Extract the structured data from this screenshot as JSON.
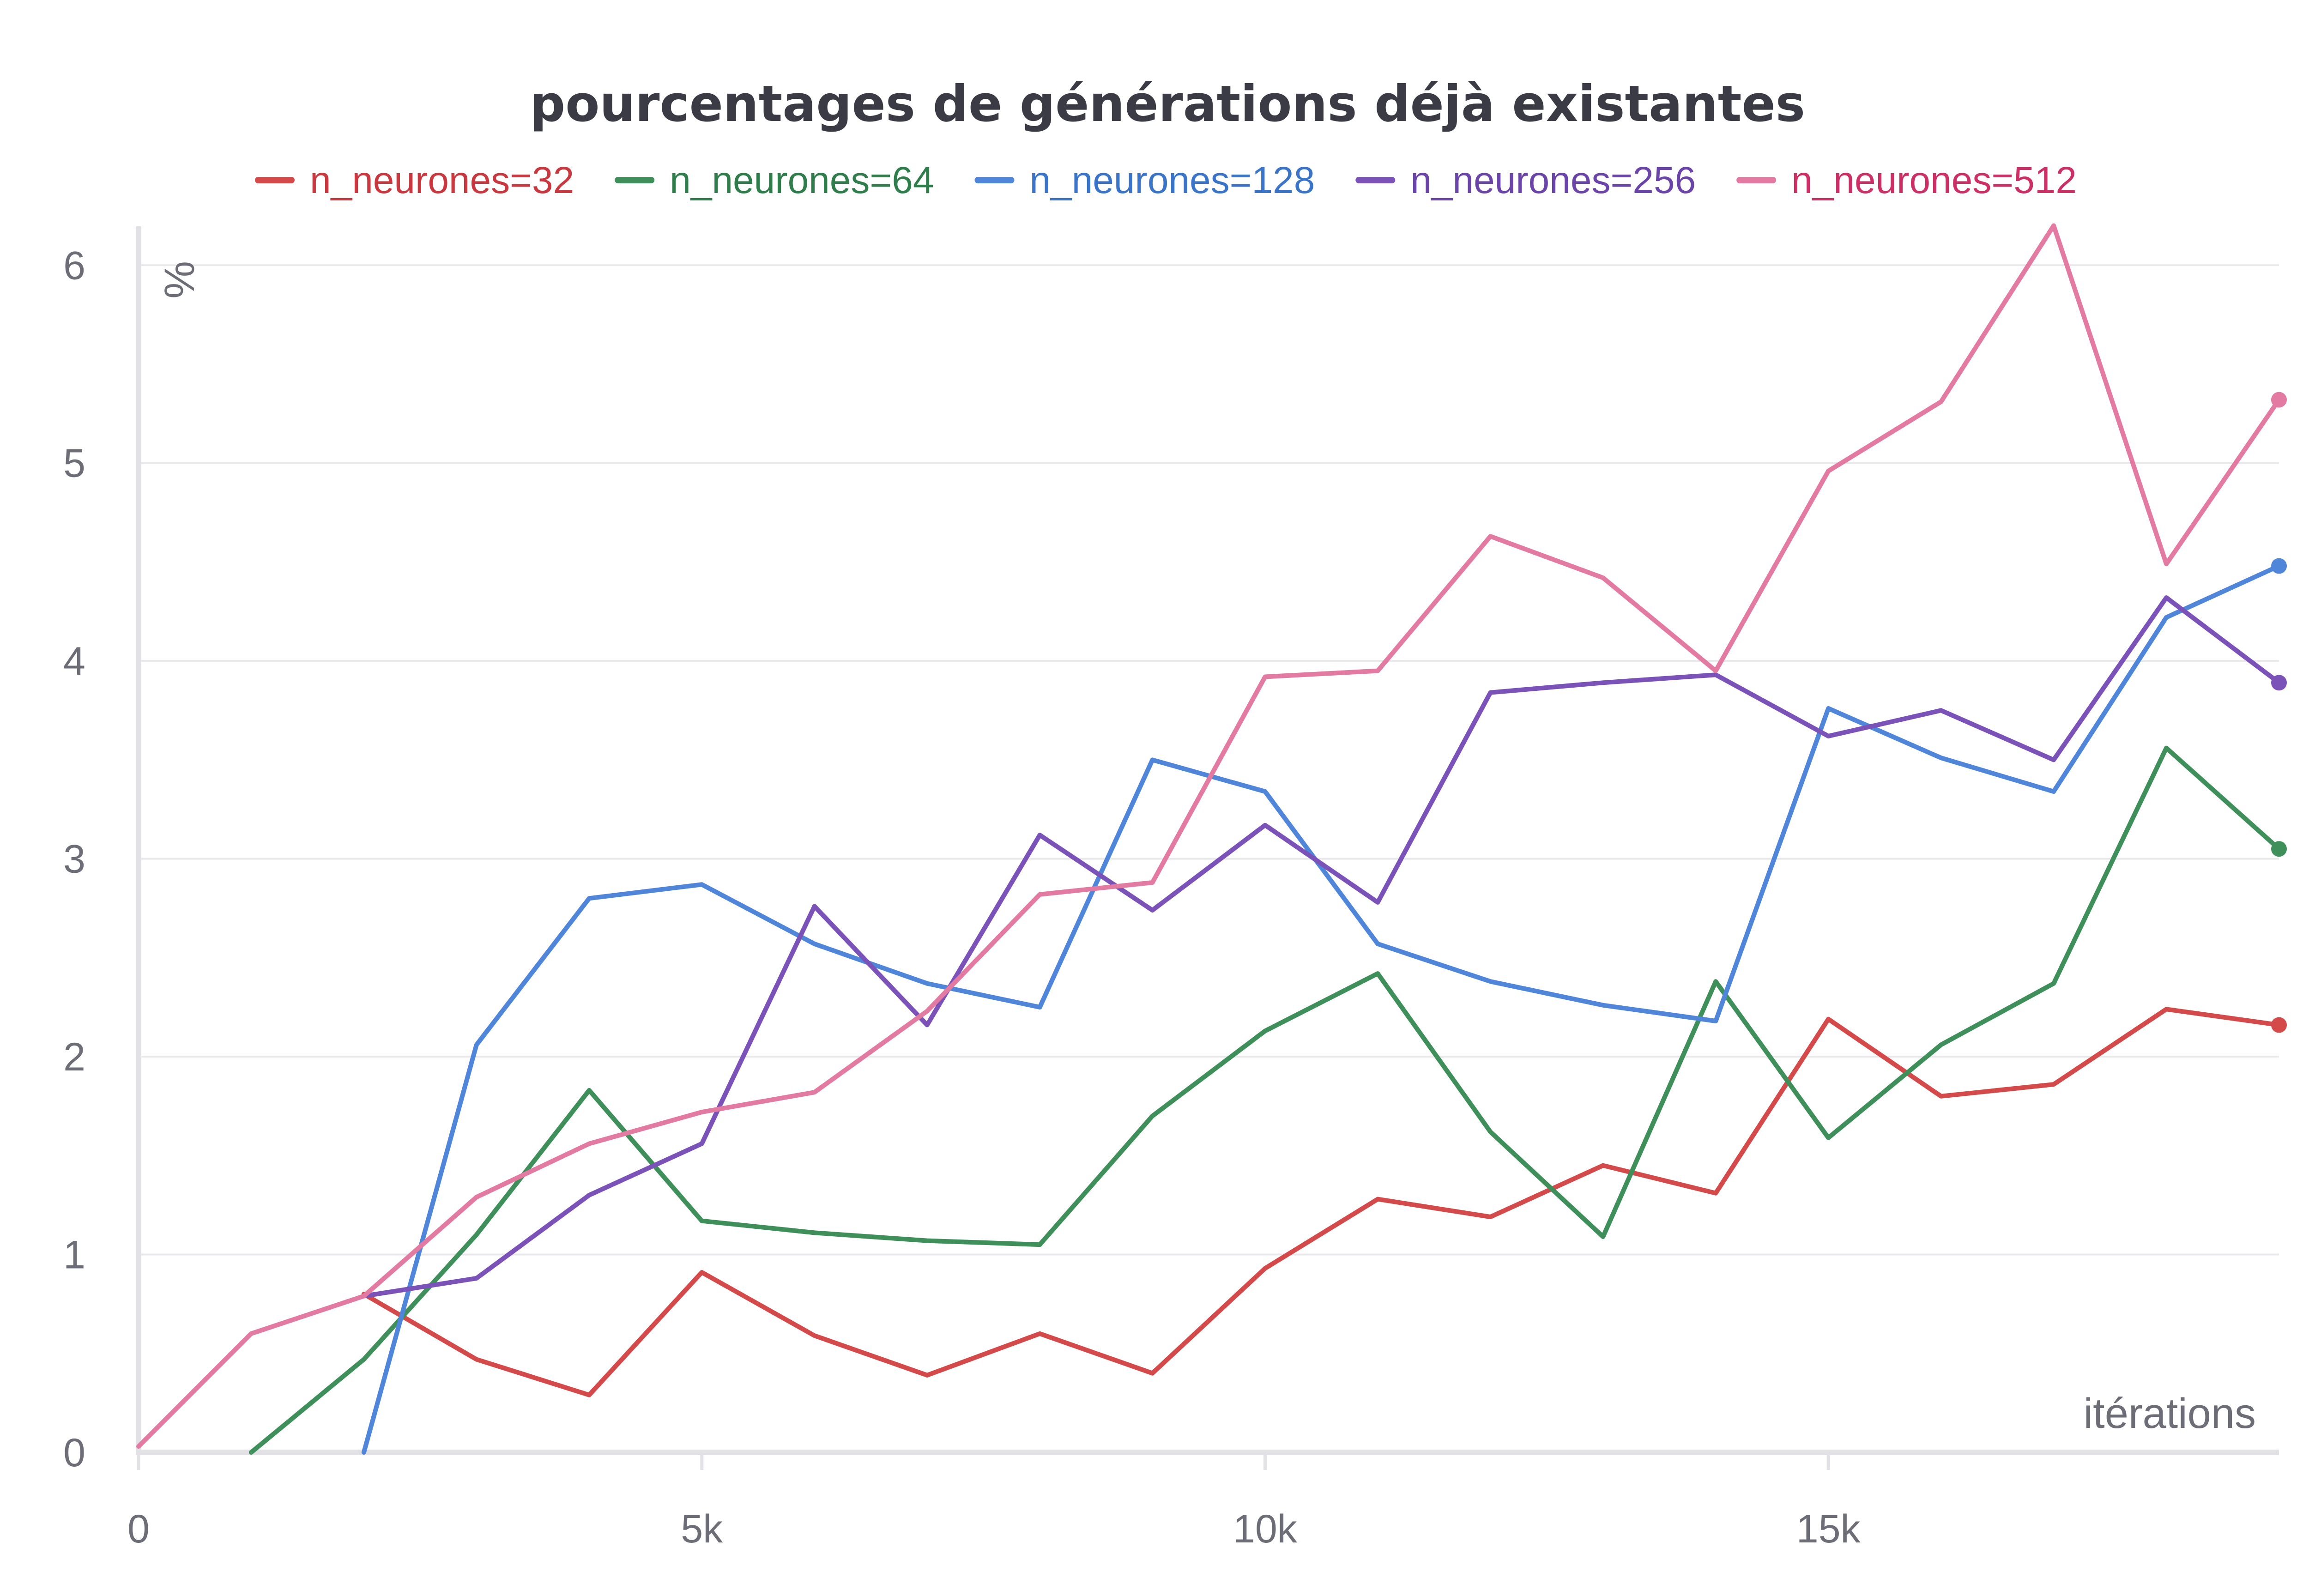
{
  "chart_data": {
    "type": "line",
    "title": "pourcentages de générations déjà existantes",
    "xlabel": "itérations",
    "ylabel": "%",
    "xlim": [
      0,
      19000
    ],
    "ylim": [
      0,
      6.15
    ],
    "x_ticks": [
      0,
      5000,
      10000,
      15000
    ],
    "x_tick_labels": [
      "0",
      "5k",
      "10k",
      "15k"
    ],
    "y_ticks": [
      0,
      1,
      2,
      3,
      4,
      5,
      6
    ],
    "y_tick_labels": [
      "0",
      "1",
      "2",
      "3",
      "4",
      "5",
      "6"
    ],
    "grid": true,
    "legend": "top",
    "series": [
      {
        "name": "n_neurones=32",
        "color": "#d44a4a",
        "x": [
          2000,
          3000,
          4000,
          5000,
          6000,
          7000,
          8000,
          9000,
          10000,
          11000,
          12000,
          13000,
          14000,
          15000,
          16000,
          17000,
          18000,
          19000
        ],
        "values": [
          0.8,
          0.47,
          0.29,
          0.91,
          0.59,
          0.39,
          0.6,
          0.4,
          0.93,
          1.28,
          1.19,
          1.45,
          1.31,
          2.19,
          1.8,
          1.86,
          2.24,
          2.16
        ]
      },
      {
        "name": "n_neurones=64",
        "color": "#3f8f5a",
        "x": [
          1000,
          2000,
          3000,
          4000,
          5000,
          6000,
          7000,
          8000,
          9000,
          10000,
          11000,
          12000,
          13000,
          14000,
          15000,
          16000,
          17000,
          18000,
          19000
        ],
        "values": [
          0.0,
          0.47,
          1.1,
          1.83,
          1.17,
          1.11,
          1.07,
          1.05,
          1.7,
          2.13,
          2.42,
          1.62,
          1.09,
          2.38,
          1.59,
          2.06,
          2.37,
          3.56,
          3.05
        ]
      },
      {
        "name": "n_neurones=128",
        "color": "#4f86d9",
        "x": [
          2000,
          3000,
          4000,
          5000,
          6000,
          7000,
          8000,
          9000,
          10000,
          11000,
          12000,
          13000,
          14000,
          15000,
          16000,
          17000,
          18000,
          19000
        ],
        "values": [
          0.0,
          2.06,
          2.8,
          2.87,
          2.57,
          2.37,
          2.25,
          3.5,
          3.34,
          2.57,
          2.38,
          2.26,
          2.18,
          3.76,
          3.51,
          3.34,
          4.22,
          4.48
        ]
      },
      {
        "name": "n_neurones=256",
        "color": "#7b52b8",
        "x": [
          2000,
          3000,
          4000,
          5000,
          6000,
          7000,
          8000,
          9000,
          10000,
          11000,
          12000,
          13000,
          14000,
          15000,
          16000,
          17000,
          18000,
          19000
        ],
        "values": [
          0.79,
          0.88,
          1.3,
          1.56,
          2.76,
          2.16,
          3.12,
          2.74,
          3.17,
          2.78,
          3.84,
          3.89,
          3.93,
          3.62,
          3.75,
          3.5,
          4.32,
          3.89
        ]
      },
      {
        "name": "n_neurones=512",
        "color": "#e37aa1",
        "x": [
          0,
          1000,
          2000,
          3000,
          4000,
          5000,
          6000,
          7000,
          8000,
          9000,
          10000,
          11000,
          12000,
          13000,
          14000,
          15000,
          16000,
          17000,
          18000,
          19000
        ],
        "values": [
          0.03,
          0.6,
          0.79,
          1.29,
          1.56,
          1.72,
          1.82,
          2.23,
          2.82,
          2.88,
          3.92,
          3.95,
          4.63,
          4.42,
          3.95,
          4.96,
          5.31,
          6.2,
          4.49,
          5.32
        ]
      }
    ]
  },
  "legend_text_colors": [
    "#c8383e",
    "#2e7d4a",
    "#3a74c9",
    "#6a44a8",
    "#cc2f66"
  ]
}
